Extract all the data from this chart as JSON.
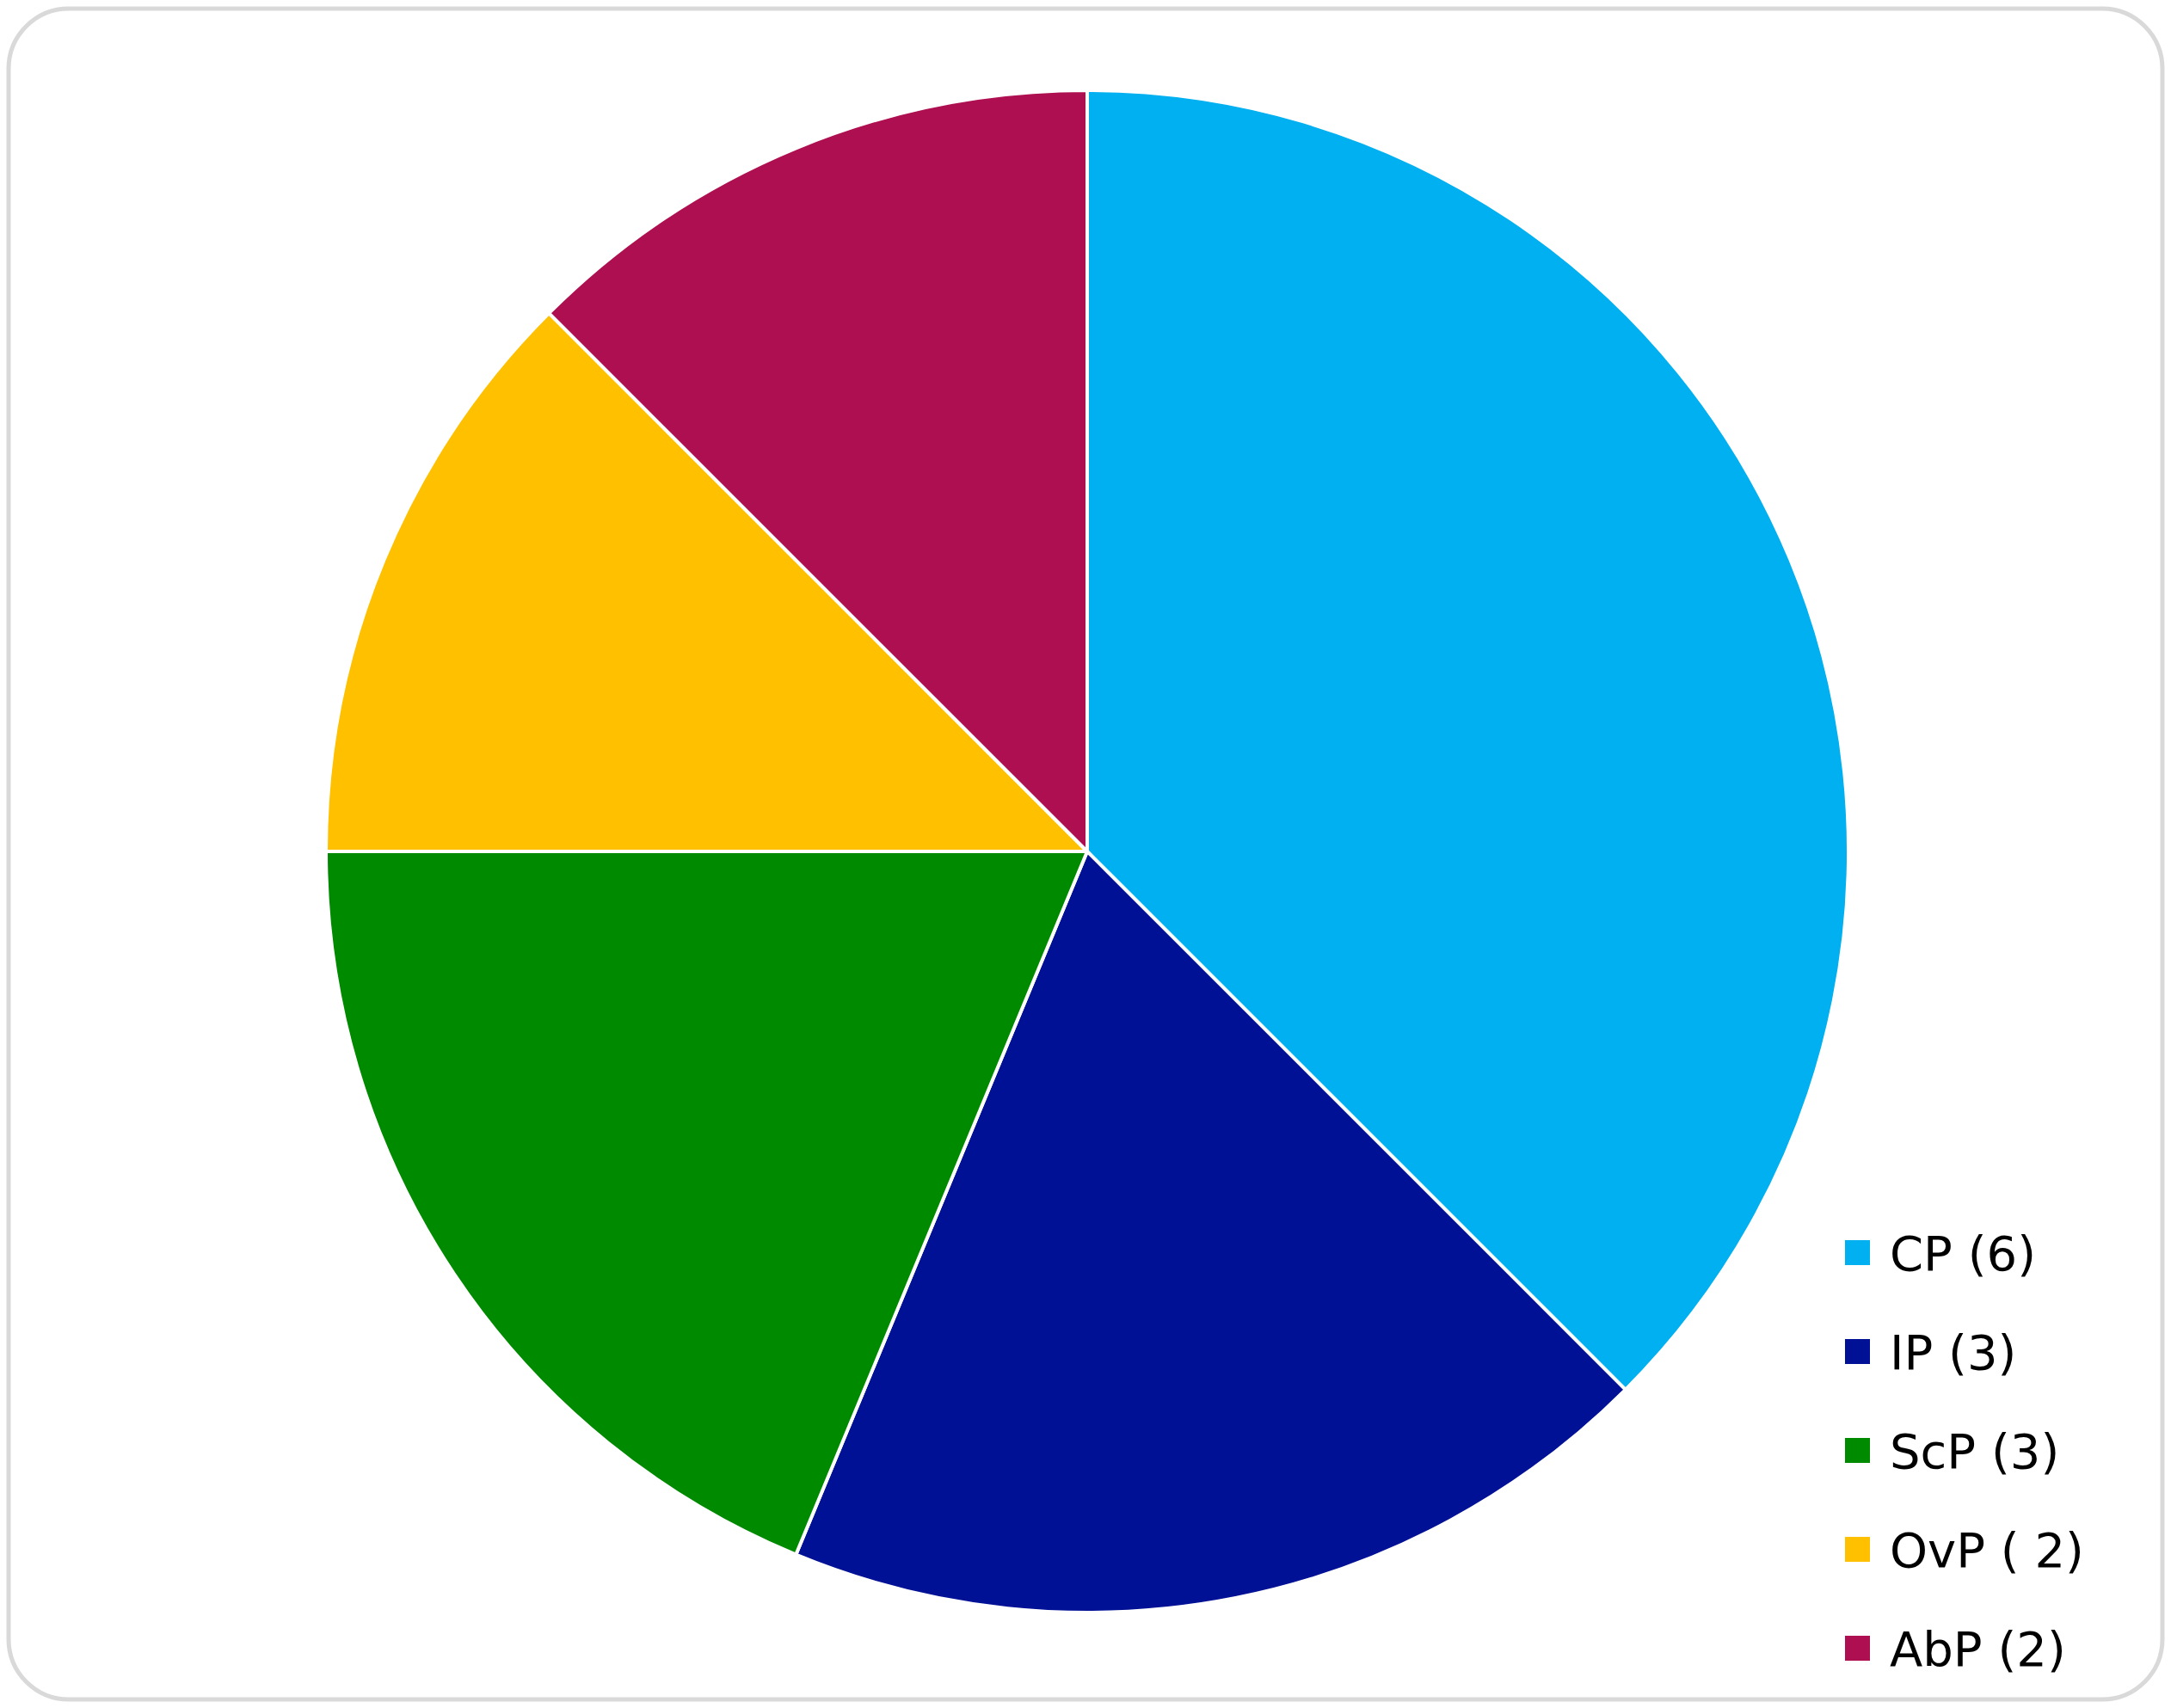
{
  "chart_data": {
    "type": "pie",
    "categories": [
      "CP (6)",
      "IP (3)",
      "ScP (3)",
      "OvP ( 2)",
      "AbP (2)"
    ],
    "values": [
      6,
      3,
      3,
      2,
      2
    ],
    "colors": [
      "#00b0f0",
      "#001196",
      "#008a00",
      "#ffc000",
      "#ae0f50"
    ],
    "legend": "bottom right"
  }
}
